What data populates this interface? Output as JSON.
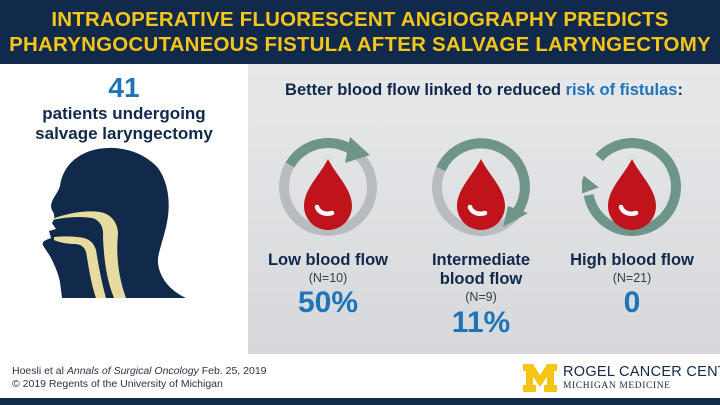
{
  "title": {
    "line1": "INTRAOPERATIVE FLUORESCENT ANGIOGRAPHY PREDICTS",
    "line2": "PHARYNGOCUTANEOUS FISTULA AFTER SALVAGE LARYNGECTOMY"
  },
  "patients": {
    "count": "41",
    "line1": "patients undergoing",
    "line2": "salvage laryngectomy"
  },
  "subtitle": {
    "prefix": "Better blood flow linked to reduced ",
    "highlight": "risk of fistulas",
    "suffix": ":"
  },
  "groups": [
    {
      "line1": "Low blood flow",
      "line2": "",
      "n": "(N=10)",
      "percent": "50%"
    },
    {
      "line1": "Intermediate",
      "line2": "blood flow",
      "n": "(N=9)",
      "percent": "11%"
    },
    {
      "line1": "High blood flow",
      "line2": "",
      "n": "(N=21)",
      "percent": "0"
    }
  ],
  "footer": {
    "citation_authors": "Hoesli et al",
    "citation_journal": "Annals of Surgical Oncology",
    "citation_date": "Feb. 25, 2019",
    "copyright": "© 2019 Regents of the University of Michigan",
    "logo_name": "ROGEL CANCER CENTER",
    "logo_sub": "MICHIGAN MEDICINE"
  },
  "colors": {
    "navy": "#11294a",
    "gold": "#f5c518",
    "blue": "#1f73b7",
    "blood_red": "#c0141c",
    "ring_gray": "#b9bcbf",
    "arrow_green": "#6f9489",
    "throat_yellow": "#e6dca0"
  },
  "icons": [
    "head-profile-icon",
    "blood-drop-icon",
    "circular-arrow-icon",
    "michigan-m-logo"
  ]
}
